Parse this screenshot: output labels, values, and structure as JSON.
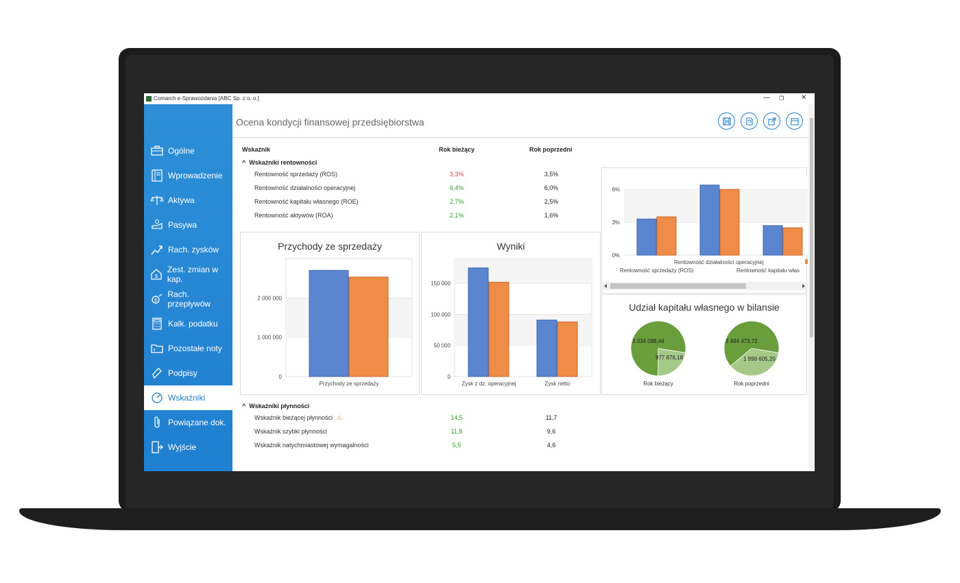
{
  "window": {
    "title": "Comarch e-Sprawozdania  [ABC Sp. z o. o.]",
    "controls": {
      "minimize": "—",
      "restore": "❐",
      "close": "✕"
    }
  },
  "sidebar": {
    "items": [
      {
        "label": "Ogólne",
        "icon": "briefcase-icon"
      },
      {
        "label": "Wprowadzenie",
        "icon": "book-icon"
      },
      {
        "label": "Aktywa",
        "icon": "scales-icon"
      },
      {
        "label": "Pasywa",
        "icon": "scales-hand-icon"
      },
      {
        "label": "Rach. zysków",
        "icon": "trend-up-icon"
      },
      {
        "label": "Zest. zmian w kap.",
        "icon": "house-dollar-icon"
      },
      {
        "label": "Rach. przepływów",
        "icon": "money-flow-icon"
      },
      {
        "label": "Kalk. podatku",
        "icon": "calculator-icon"
      },
      {
        "label": "Pozostałe noty",
        "icon": "folder-icon"
      },
      {
        "label": "Podpisy",
        "icon": "pen-icon"
      },
      {
        "label": "Wskaźniki",
        "icon": "gauge-icon",
        "active": true
      },
      {
        "label": "Powiązane dok.",
        "icon": "paperclip-icon"
      },
      {
        "label": "Wyjście",
        "icon": "exit-icon"
      }
    ]
  },
  "header": {
    "title": "Ocena kondycji finansowej przedsiębiorstwa",
    "toolbar": [
      "save-icon",
      "document-refresh-icon",
      "export-icon",
      "calendar-icon"
    ]
  },
  "table": {
    "columns": [
      "Wskaźnik",
      "Rok bieżący",
      "Rok poprzedni"
    ],
    "groups": [
      {
        "name": "Wskaźniki rentowności",
        "toggle": "^",
        "rows": [
          {
            "label": "Rentowność sprzedaży (ROS)",
            "current": "3,3%",
            "previous": "3,5%",
            "status": "bad"
          },
          {
            "label": "Rentowność działalności operacyjnej",
            "current": "6,4%",
            "previous": "6,0%",
            "status": "good"
          },
          {
            "label": "Rentowność kapitału własnego (ROE)",
            "current": "2,7%",
            "previous": "2,5%",
            "status": "good"
          },
          {
            "label": "Rentowność aktywów (ROA)",
            "current": "2,1%",
            "previous": "1,6%",
            "status": "good"
          }
        ]
      },
      {
        "name": "Wskaźniki płynności",
        "toggle": "^",
        "rows": [
          {
            "label": "Wskaźnik bieżącej płynności",
            "current": "14,5",
            "previous": "11,7",
            "status": "good",
            "warning": "⚠"
          },
          {
            "label": "Wskaźnik szybki płynności",
            "current": "11,8",
            "previous": "9,6",
            "status": "good"
          },
          {
            "label": "Wskaźnik natychmiastowej wymagalności",
            "current": "5,5",
            "previous": "4,6",
            "status": "good"
          }
        ]
      }
    ]
  },
  "colors": {
    "current": "#5b86cf",
    "previous": "#ef8c48",
    "good": "#2e9b2e",
    "bad": "#e0433b",
    "accent": "#1f7fd0",
    "pie_dark": "#6a9e3c",
    "pie_light": "#a6c98a"
  },
  "chart_data": [
    {
      "type": "bar",
      "title": "Przychody ze sprzedaży",
      "categories": [
        "Przychody ze sprzedaży"
      ],
      "yticks": [
        "0",
        "1 000 000",
        "2 000 000"
      ],
      "ylim": [
        0,
        3000000
      ],
      "series": [
        {
          "values": [
            2700000
          ]
        },
        {
          "values": [
            2530000
          ]
        }
      ]
    },
    {
      "type": "bar",
      "title": "Wyniki",
      "categories": [
        "Zysk z dz. operacyjnej",
        "Zysk netto"
      ],
      "yticks": [
        "0",
        "50 000",
        "100 000",
        "150 000"
      ],
      "ylim": [
        0,
        190000
      ],
      "series": [
        {
          "values": [
            175000,
            91000
          ]
        },
        {
          "values": [
            152000,
            88000
          ]
        }
      ]
    },
    {
      "type": "bar",
      "title": "",
      "categories": [
        "Rentowność sprzedaży (ROS)",
        "Rentowność działalności operacyjnej",
        "Rentowność kapitału własnego (ROE)"
      ],
      "category_labels_visible": [
        "Rentowność sprzedaży (ROS)",
        "Rentowność działalności operacyjnej",
        "Rentowność kapitału włas"
      ],
      "yticks": [
        "0%",
        "3%",
        "6%"
      ],
      "ylim": [
        0,
        7.2
      ],
      "series": [
        {
          "values": [
            3.3,
            6.4,
            2.7
          ]
        },
        {
          "values": [
            3.5,
            6.0,
            2.5
          ]
        }
      ],
      "grid": true
    },
    {
      "type": "pie",
      "title": "Udział kapitału własnego w bilansie",
      "pies": [
        {
          "label": "Rok bieżący",
          "slices": [
            {
              "value": 3334088.44,
              "text": "3 334 088,44"
            },
            {
              "value": 977876.18,
              "text": "977 876,18"
            }
          ]
        },
        {
          "label": "Rok poprzedni",
          "slices": [
            {
              "value": 3484473.72,
              "text": "3 484 473,72"
            },
            {
              "value": 1998605.2,
              "text": "1 998 605,20"
            }
          ]
        }
      ]
    }
  ]
}
